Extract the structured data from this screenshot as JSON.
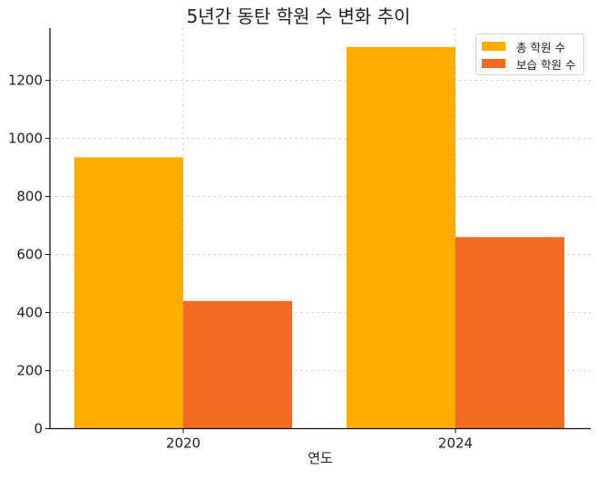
{
  "chart_data": {
    "type": "bar",
    "title": "5년간 동탄 학원 수 변화 추이",
    "xlabel": "연도",
    "ylabel": "",
    "categories": [
      "2020",
      "2024"
    ],
    "series": [
      {
        "name": "총 학원 수",
        "color": "#FFAE00",
        "values": [
          935,
          1315
        ]
      },
      {
        "name": "보습 학원 수",
        "color": "#F26B21",
        "values": [
          440,
          660
        ]
      }
    ],
    "ylim": [
      0,
      1380
    ],
    "yticks": [
      0,
      200,
      400,
      600,
      800,
      1000,
      1200
    ],
    "grid": true,
    "grid_style": "dashed",
    "legend_position": "upper right"
  }
}
